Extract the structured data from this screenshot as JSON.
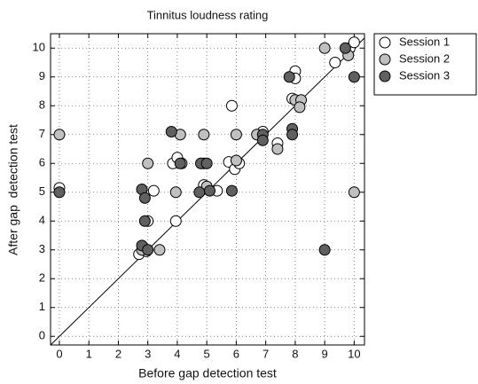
{
  "chart_data": {
    "type": "scatter",
    "title": "Tinnitus loudness rating",
    "x_label": "Before gap detection test",
    "y_label": "After gap  detection test",
    "xlim": [
      -0.3,
      10.35
    ],
    "ylim": [
      -0.3,
      10.5
    ],
    "xticks": [
      0,
      1,
      2,
      3,
      4,
      5,
      6,
      7,
      8,
      9,
      10
    ],
    "yticks": [
      0,
      1,
      2,
      3,
      4,
      5,
      6,
      7,
      8,
      9,
      10
    ],
    "grid": true,
    "legend": "outside-right",
    "series": [
      {
        "name": "Session 1",
        "color": "#ffffff",
        "x": [
          0,
          2.7,
          2.95,
          3,
          3.2,
          3.95,
          3.85,
          4,
          4.15,
          4.9,
          5.35,
          5.85,
          5.75,
          5.95,
          6.1,
          6.9,
          7.4,
          7.9,
          8,
          8,
          9.35,
          9.85,
          10
        ],
        "values": [
          5.15,
          2.85,
          2.95,
          4,
          5.05,
          4,
          6,
          6.2,
          6,
          5.25,
          5.05,
          8,
          6.05,
          5.8,
          6,
          7.1,
          6.7,
          8.25,
          9.2,
          8.95,
          9.5,
          10,
          10.2
        ]
      },
      {
        "name": "Session 2",
        "color": "#c0c0c0",
        "x": [
          0,
          3,
          3.4,
          2.8,
          3.95,
          4.1,
          4.9,
          4.9,
          5,
          6,
          6,
          6.7,
          7.4,
          8,
          8.2,
          8.15,
          9,
          9.8,
          10
        ],
        "values": [
          7,
          6,
          3,
          3,
          5,
          7,
          7,
          6,
          5.2,
          7,
          6.1,
          7,
          6.5,
          8.2,
          8.2,
          7.95,
          10,
          9.75,
          5
        ]
      },
      {
        "name": "Session 3",
        "color": "#606060",
        "x": [
          0,
          2.8,
          2.9,
          2.9,
          2.8,
          3,
          3.8,
          4.1,
          4.8,
          5,
          4.75,
          5.85,
          6.9,
          6.9,
          7.8,
          7.9,
          7.9,
          9,
          9.7,
          10,
          5.1
        ],
        "values": [
          5,
          5.1,
          4,
          4.8,
          3.15,
          3,
          7.1,
          6,
          6,
          6,
          5,
          5.05,
          7,
          6.8,
          9,
          7.2,
          7,
          3,
          10,
          9,
          5.05
        ]
      }
    ]
  }
}
